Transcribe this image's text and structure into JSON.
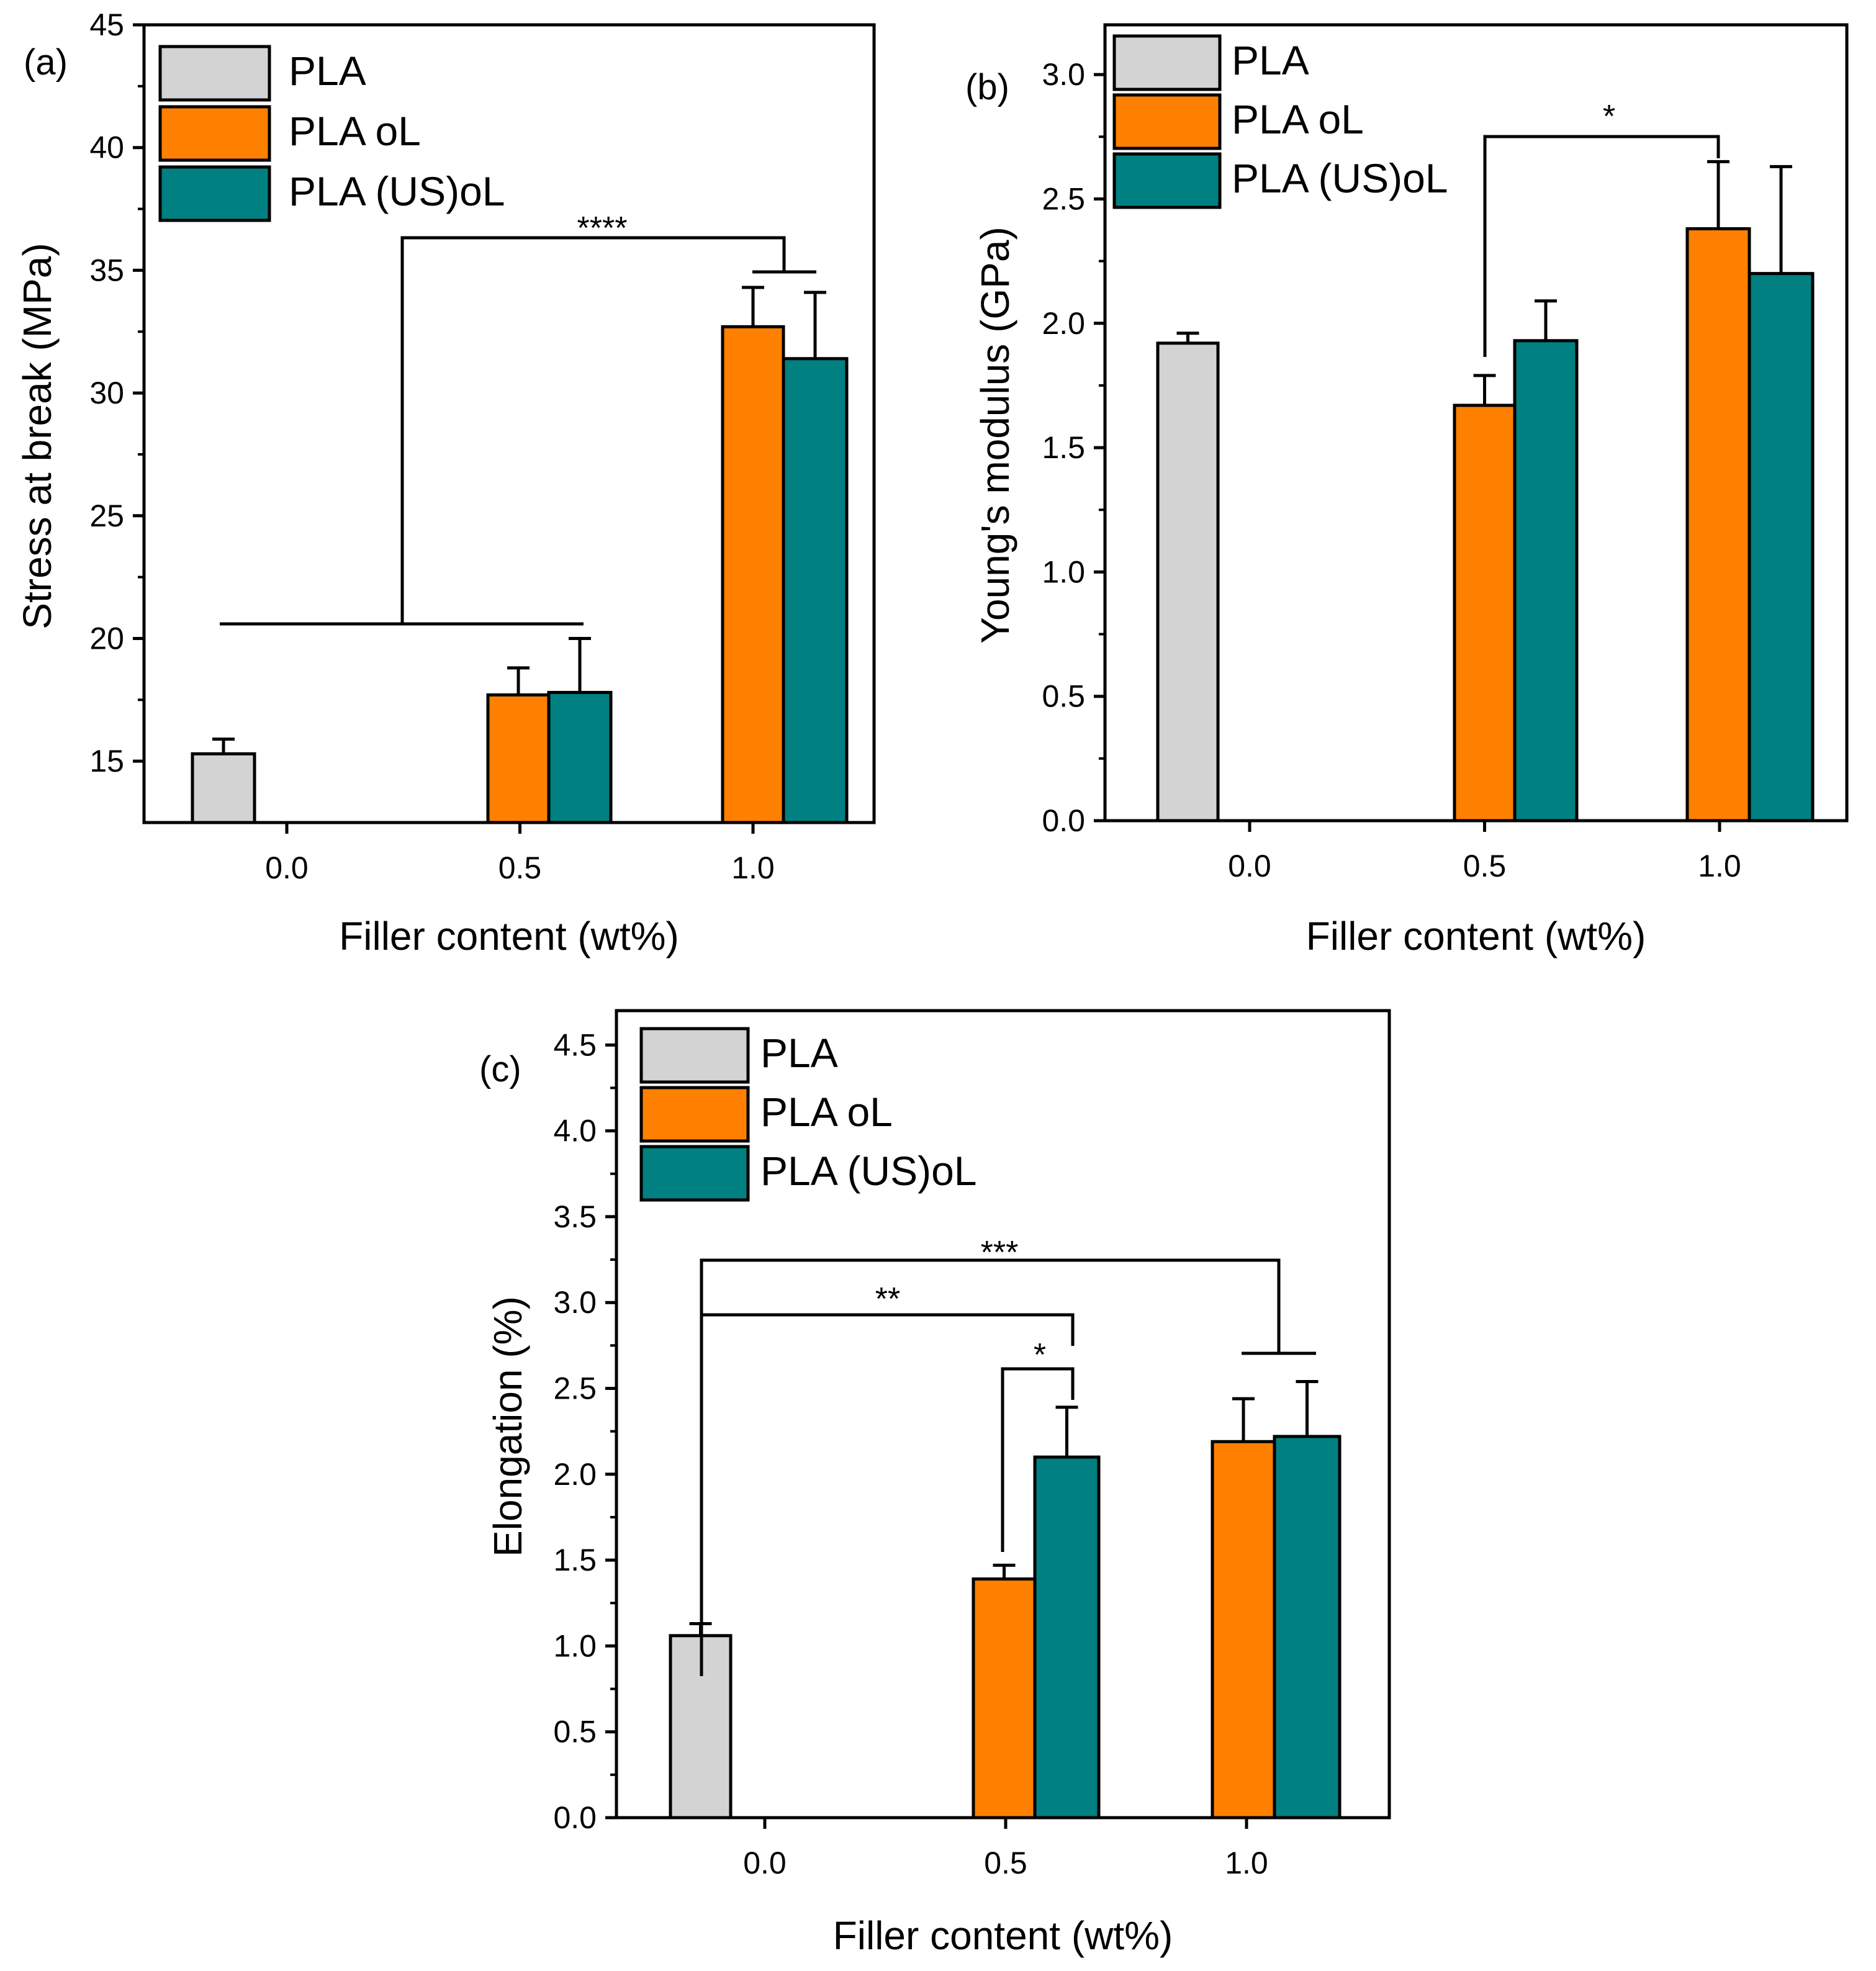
{
  "legend_labels": [
    "PLA",
    "PLA oL",
    "PLA (US)oL"
  ],
  "colors": {
    "PLA": "#d3d3d3",
    "PLA oL": "#ff8000",
    "PLA (US)oL": "#008080",
    "stroke": "#000000"
  },
  "chart_data": [
    {
      "panel": "(a)",
      "type": "bar",
      "xlabel": "Filler content (wt%)",
      "ylabel": "Stress at break (MPa)",
      "ylim": [
        12.5,
        45
      ],
      "yticks": [
        15,
        20,
        25,
        30,
        35,
        40,
        45
      ],
      "categories": [
        "0.0",
        "0.5",
        "1.0"
      ],
      "legend_position": "top-left",
      "series": [
        {
          "name": "PLA",
          "values": [
            15.3,
            null,
            null
          ],
          "errors": [
            0.6,
            null,
            null
          ]
        },
        {
          "name": "PLA oL",
          "values": [
            null,
            17.7,
            32.7
          ],
          "errors": [
            null,
            1.1,
            1.6
          ]
        },
        {
          "name": "PLA (US)oL",
          "values": [
            null,
            17.8,
            31.4
          ],
          "errors": [
            null,
            2.2,
            2.7
          ]
        }
      ],
      "significance": [
        {
          "label": "****",
          "from": "0.0-0.5 group",
          "to": "1.0 group"
        }
      ]
    },
    {
      "panel": "(b)",
      "type": "bar",
      "xlabel": "Filler content (wt%)",
      "ylabel": "Young's modulus (GPa)",
      "ylim": [
        0,
        3.2
      ],
      "yticks": [
        0.0,
        0.5,
        1.0,
        1.5,
        2.0,
        2.5,
        3.0
      ],
      "categories": [
        "0.0",
        "0.5",
        "1.0"
      ],
      "legend_position": "top-left",
      "series": [
        {
          "name": "PLA",
          "values": [
            1.92,
            null,
            null
          ],
          "errors": [
            0.04,
            null,
            null
          ]
        },
        {
          "name": "PLA oL",
          "values": [
            null,
            1.67,
            2.38
          ],
          "errors": [
            null,
            0.12,
            0.27
          ]
        },
        {
          "name": "PLA (US)oL",
          "values": [
            null,
            1.93,
            2.2
          ],
          "errors": [
            null,
            0.16,
            0.43
          ]
        }
      ],
      "significance": [
        {
          "label": "*",
          "from": "0.5 group",
          "to": "1.0 PLA oL"
        }
      ]
    },
    {
      "panel": "(c)",
      "type": "bar",
      "xlabel": "Filler content (wt%)",
      "ylabel": "Elongation (%)",
      "ylim": [
        0,
        4.7
      ],
      "yticks": [
        0.0,
        0.5,
        1.0,
        1.5,
        2.0,
        2.5,
        3.0,
        3.5,
        4.0,
        4.5
      ],
      "categories": [
        "0.0",
        "0.5",
        "1.0"
      ],
      "legend_position": "top-left",
      "series": [
        {
          "name": "PLA",
          "values": [
            1.06,
            null,
            null
          ],
          "errors": [
            0.07,
            null,
            null
          ]
        },
        {
          "name": "PLA oL",
          "values": [
            null,
            1.39,
            2.19
          ],
          "errors": [
            null,
            0.08,
            0.25
          ]
        },
        {
          "name": "PLA (US)oL",
          "values": [
            null,
            2.1,
            2.22
          ],
          "errors": [
            null,
            0.29,
            0.32
          ]
        }
      ],
      "significance": [
        {
          "label": "***",
          "from": "0.0 PLA",
          "to": "1.0 group"
        },
        {
          "label": "**",
          "from": "0.0 PLA",
          "to": "0.5 PLA (US)oL"
        },
        {
          "label": "*",
          "from": "0.5 PLA oL",
          "to": "0.5 PLA (US)oL"
        }
      ]
    }
  ]
}
